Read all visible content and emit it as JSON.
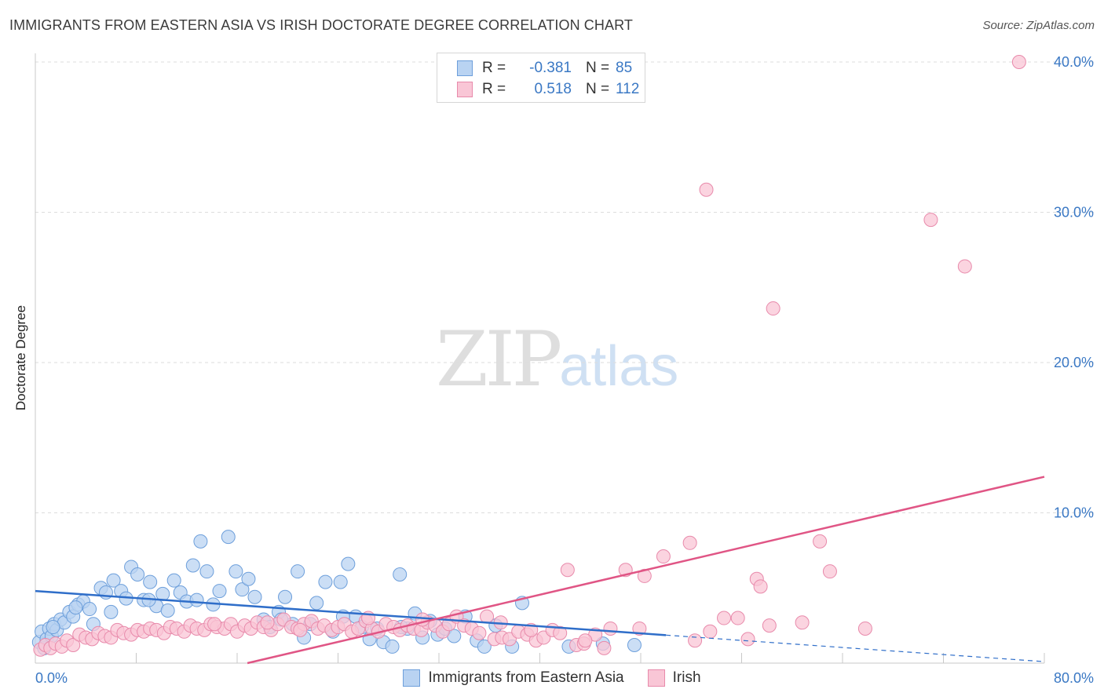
{
  "title": "IMMIGRANTS FROM EASTERN ASIA VS IRISH DOCTORATE DEGREE CORRELATION CHART",
  "source": "Source: ZipAtlas.com",
  "watermark": {
    "zip": "ZIP",
    "atlas": "atlas"
  },
  "legend": {
    "r_label": "R =",
    "n_label": "N =",
    "series": [
      {
        "name": "Immigrants from Eastern Asia",
        "r": "-0.381",
        "n": "85",
        "fill": "#b9d3f2",
        "stroke": "#6d9fdb"
      },
      {
        "name": "Irish",
        "r": "0.518",
        "n": "112",
        "fill": "#f9c6d6",
        "stroke": "#e88aab"
      }
    ]
  },
  "colors": {
    "blue_fill": "#b9d3f2",
    "blue_stroke": "#6d9fdb",
    "blue_line": "#2f6ec9",
    "pink_fill": "#f9c6d6",
    "pink_stroke": "#e88aab",
    "pink_line": "#e05585",
    "tick_text": "#3a78c4",
    "grid": "#dcdcdc"
  },
  "chart_data": {
    "type": "scatter",
    "title": "IMMIGRANTS FROM EASTERN ASIA VS IRISH DOCTORATE DEGREE CORRELATION CHART",
    "xlabel": "",
    "ylabel": "Doctorate Degree",
    "xlim": [
      0,
      80
    ],
    "ylim": [
      0,
      40
    ],
    "x_tick_labels": [
      "0.0%",
      "80.0%"
    ],
    "y_ticks": [
      10,
      20,
      30,
      40
    ],
    "y_tick_labels": [
      "10.0%",
      "20.0%",
      "30.0%",
      "40.0%"
    ],
    "grid": true,
    "series": [
      {
        "name": "Immigrants from Eastern Asia",
        "trend": {
          "x0": 0,
          "y0": 4.8,
          "x1": 80,
          "y1": 0.1,
          "solid_until": 50
        },
        "points": [
          [
            0.3,
            1.4
          ],
          [
            0.5,
            2.1
          ],
          [
            0.7,
            1.0
          ],
          [
            0.9,
            1.6
          ],
          [
            1.1,
            2.3
          ],
          [
            1.3,
            1.8
          ],
          [
            1.5,
            2.6
          ],
          [
            1.7,
            2.2
          ],
          [
            2.0,
            2.9
          ],
          [
            2.3,
            2.7
          ],
          [
            2.7,
            3.4
          ],
          [
            3.0,
            3.1
          ],
          [
            3.4,
            3.9
          ],
          [
            3.8,
            4.1
          ],
          [
            4.3,
            3.6
          ],
          [
            4.6,
            2.6
          ],
          [
            5.2,
            5.0
          ],
          [
            5.6,
            4.7
          ],
          [
            6.2,
            5.5
          ],
          [
            6.8,
            4.8
          ],
          [
            7.2,
            4.3
          ],
          [
            7.6,
            6.4
          ],
          [
            8.1,
            5.9
          ],
          [
            8.6,
            4.2
          ],
          [
            9.1,
            5.4
          ],
          [
            9.6,
            3.8
          ],
          [
            10.1,
            4.6
          ],
          [
            10.5,
            3.5
          ],
          [
            11.0,
            5.5
          ],
          [
            11.5,
            4.7
          ],
          [
            12.0,
            4.1
          ],
          [
            12.5,
            6.5
          ],
          [
            13.1,
            8.1
          ],
          [
            13.6,
            6.1
          ],
          [
            14.1,
            3.9
          ],
          [
            14.6,
            4.8
          ],
          [
            15.3,
            8.4
          ],
          [
            15.9,
            6.1
          ],
          [
            16.4,
            4.9
          ],
          [
            16.9,
            5.6
          ],
          [
            17.4,
            4.4
          ],
          [
            18.1,
            2.9
          ],
          [
            18.6,
            2.4
          ],
          [
            19.3,
            3.4
          ],
          [
            19.8,
            4.4
          ],
          [
            20.4,
            2.6
          ],
          [
            20.8,
            6.1
          ],
          [
            21.3,
            1.7
          ],
          [
            21.8,
            2.6
          ],
          [
            22.3,
            4.0
          ],
          [
            23.0,
            5.4
          ],
          [
            23.6,
            2.1
          ],
          [
            24.2,
            5.4
          ],
          [
            24.8,
            6.6
          ],
          [
            25.4,
            3.1
          ],
          [
            25.9,
            2.4
          ],
          [
            26.5,
            1.6
          ],
          [
            27.1,
            2.3
          ],
          [
            27.6,
            1.4
          ],
          [
            28.3,
            1.1
          ],
          [
            28.9,
            5.9
          ],
          [
            29.5,
            2.3
          ],
          [
            30.1,
            3.3
          ],
          [
            30.7,
            1.7
          ],
          [
            31.3,
            2.8
          ],
          [
            31.9,
            1.9
          ],
          [
            32.5,
            2.3
          ],
          [
            33.2,
            1.8
          ],
          [
            34.1,
            3.1
          ],
          [
            35.0,
            1.5
          ],
          [
            35.6,
            1.1
          ],
          [
            36.5,
            2.5
          ],
          [
            37.8,
            1.1
          ],
          [
            38.6,
            4.0
          ],
          [
            42.3,
            1.1
          ],
          [
            45.0,
            1.3
          ],
          [
            47.5,
            1.2
          ],
          [
            1.4,
            2.4
          ],
          [
            3.2,
            3.7
          ],
          [
            6.0,
            3.4
          ],
          [
            9.0,
            4.2
          ],
          [
            12.8,
            4.2
          ],
          [
            19.5,
            2.9
          ],
          [
            24.4,
            3.1
          ],
          [
            29.0,
            2.4
          ]
        ]
      },
      {
        "name": "Irish",
        "trend": {
          "x0": 0,
          "y0": -3.3,
          "x1": 80,
          "y1": 12.4
        },
        "points": [
          [
            0.4,
            0.9
          ],
          [
            0.8,
            1.2
          ],
          [
            1.2,
            1.0
          ],
          [
            1.6,
            1.3
          ],
          [
            2.1,
            1.1
          ],
          [
            2.5,
            1.5
          ],
          [
            3.0,
            1.2
          ],
          [
            3.5,
            1.9
          ],
          [
            4.0,
            1.7
          ],
          [
            4.5,
            1.6
          ],
          [
            5.0,
            2.0
          ],
          [
            5.5,
            1.8
          ],
          [
            6.0,
            1.7
          ],
          [
            6.5,
            2.2
          ],
          [
            7.0,
            2.0
          ],
          [
            7.6,
            1.9
          ],
          [
            8.1,
            2.2
          ],
          [
            8.6,
            2.1
          ],
          [
            9.1,
            2.3
          ],
          [
            9.6,
            2.2
          ],
          [
            10.2,
            2.0
          ],
          [
            10.7,
            2.4
          ],
          [
            11.2,
            2.3
          ],
          [
            11.8,
            2.1
          ],
          [
            12.3,
            2.5
          ],
          [
            12.8,
            2.3
          ],
          [
            13.4,
            2.2
          ],
          [
            13.9,
            2.6
          ],
          [
            14.4,
            2.4
          ],
          [
            15.0,
            2.3
          ],
          [
            15.5,
            2.6
          ],
          [
            16.0,
            2.1
          ],
          [
            16.6,
            2.5
          ],
          [
            17.1,
            2.3
          ],
          [
            17.6,
            2.7
          ],
          [
            18.1,
            2.4
          ],
          [
            18.7,
            2.2
          ],
          [
            19.2,
            2.6
          ],
          [
            19.7,
            2.9
          ],
          [
            20.3,
            2.4
          ],
          [
            20.8,
            2.3
          ],
          [
            21.3,
            2.6
          ],
          [
            21.9,
            2.8
          ],
          [
            22.4,
            2.3
          ],
          [
            22.9,
            2.5
          ],
          [
            23.5,
            2.2
          ],
          [
            24.0,
            2.4
          ],
          [
            24.5,
            2.6
          ],
          [
            25.1,
            2.1
          ],
          [
            25.6,
            2.3
          ],
          [
            26.2,
            2.8
          ],
          [
            26.7,
            2.3
          ],
          [
            27.2,
            2.1
          ],
          [
            27.8,
            2.6
          ],
          [
            28.4,
            2.4
          ],
          [
            28.9,
            2.2
          ],
          [
            29.5,
            2.5
          ],
          [
            30.0,
            2.3
          ],
          [
            30.6,
            2.2
          ],
          [
            31.1,
            2.7
          ],
          [
            31.7,
            2.5
          ],
          [
            32.3,
            2.1
          ],
          [
            32.8,
            2.6
          ],
          [
            33.4,
            3.1
          ],
          [
            34.0,
            2.5
          ],
          [
            34.6,
            2.3
          ],
          [
            35.2,
            2.0
          ],
          [
            35.8,
            3.1
          ],
          [
            36.4,
            1.6
          ],
          [
            37.0,
            1.7
          ],
          [
            37.6,
            1.6
          ],
          [
            38.3,
            2.1
          ],
          [
            39.0,
            1.9
          ],
          [
            39.7,
            1.5
          ],
          [
            40.3,
            1.7
          ],
          [
            41.0,
            2.2
          ],
          [
            41.6,
            2.0
          ],
          [
            42.2,
            6.2
          ],
          [
            42.9,
            1.2
          ],
          [
            43.5,
            1.3
          ],
          [
            44.4,
            1.9
          ],
          [
            45.1,
            1.0
          ],
          [
            46.8,
            6.2
          ],
          [
            48.3,
            5.8
          ],
          [
            49.8,
            7.1
          ],
          [
            51.9,
            8.0
          ],
          [
            53.5,
            2.1
          ],
          [
            54.6,
            3.0
          ],
          [
            55.7,
            3.0
          ],
          [
            57.2,
            5.6
          ],
          [
            57.5,
            5.1
          ],
          [
            58.2,
            2.5
          ],
          [
            60.8,
            2.7
          ],
          [
            62.2,
            8.1
          ],
          [
            63.0,
            6.1
          ],
          [
            65.8,
            2.3
          ],
          [
            47.9,
            2.3
          ],
          [
            52.3,
            1.5
          ],
          [
            56.5,
            1.6
          ],
          [
            26.4,
            3.0
          ],
          [
            14.2,
            2.6
          ],
          [
            18.4,
            2.7
          ],
          [
            21.0,
            2.2
          ],
          [
            30.7,
            2.9
          ],
          [
            39.3,
            2.2
          ],
          [
            45.6,
            2.3
          ],
          [
            43.6,
            1.5
          ],
          [
            36.9,
            2.7
          ],
          [
            53.2,
            31.5
          ],
          [
            58.5,
            23.6
          ],
          [
            71.0,
            29.5
          ],
          [
            73.7,
            26.4
          ]
        ]
      }
    ],
    "extra_points": {
      "Irish": [
        [
          78,
          40.0
        ]
      ]
    }
  }
}
